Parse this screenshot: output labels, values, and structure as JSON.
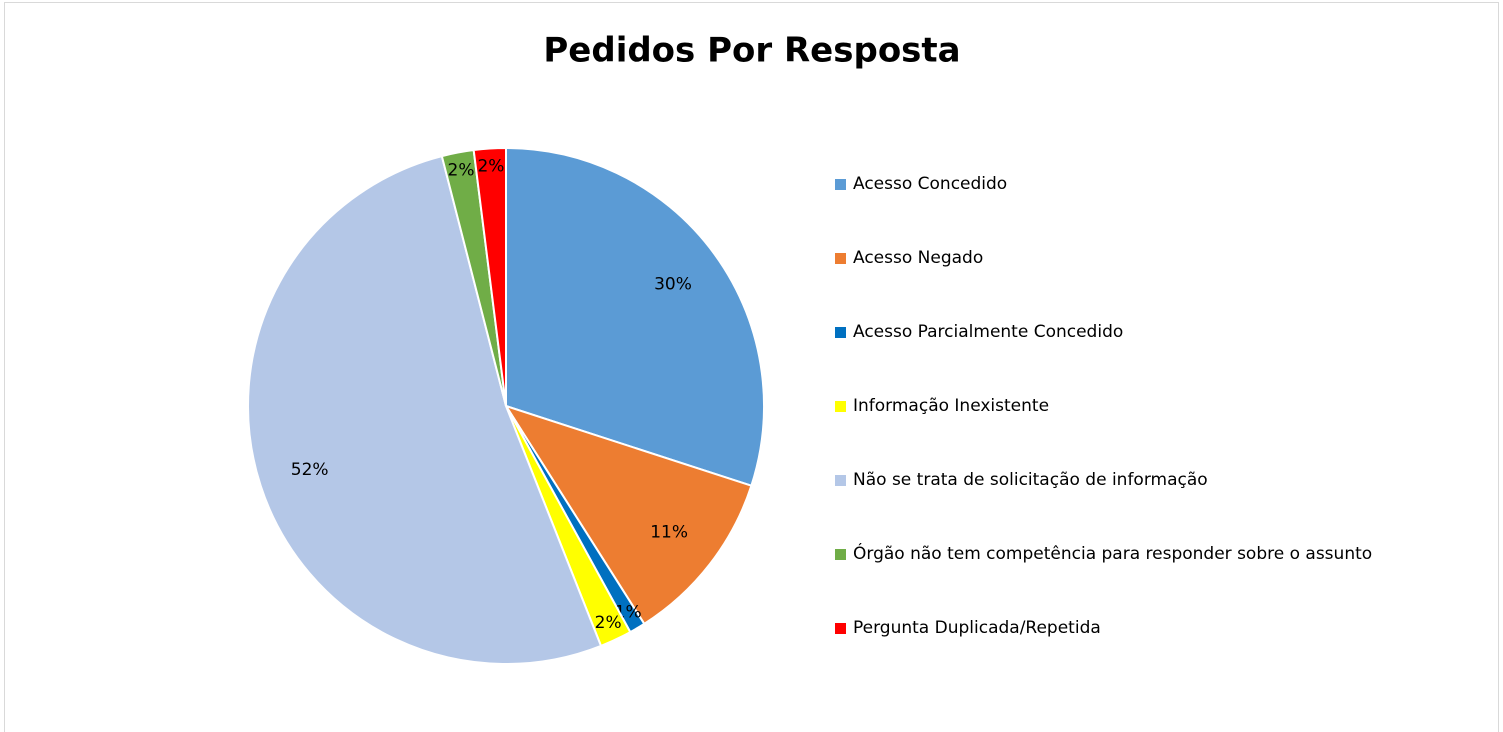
{
  "chart_data": {
    "type": "pie",
    "title": "Pedidos Por Resposta",
    "categories": [
      "Acesso Concedido",
      "Acesso Negado",
      "Acesso Parcialmente Concedido",
      "Informação Inexistente",
      "Não se trata de solicitação de informação",
      "Órgão não tem competência para responder sobre o assunto",
      "Pergunta Duplicada/Repetida"
    ],
    "values": [
      30,
      11,
      1,
      2,
      52,
      2,
      2
    ],
    "value_labels": [
      "30%",
      "11%",
      "1%",
      "2%",
      "52%",
      "2%",
      "2%"
    ],
    "colors": [
      "#5b9bd5",
      "#ed7d31",
      "#0070c0",
      "#ffff00",
      "#b4c7e7",
      "#70ad47",
      "#ff0000"
    ],
    "legend": "right"
  }
}
